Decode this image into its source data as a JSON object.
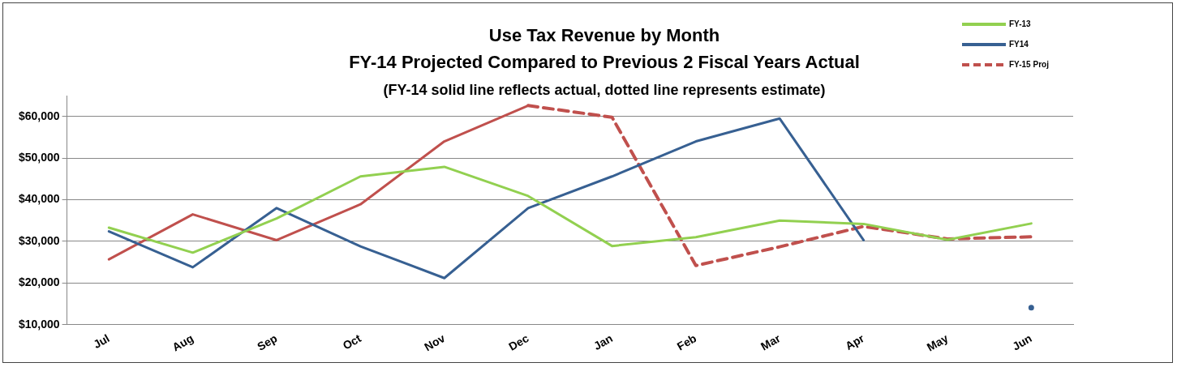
{
  "chart_data": {
    "type": "line",
    "title": "Use Tax Revenue by Month",
    "subtitle": "FY-14 Projected Compared to Previous 2 Fiscal Years Actual",
    "annotations": [
      "(FY-14 solid line reflects actual, dotted line represents estimate)"
    ],
    "categories": [
      "Jul",
      "Aug",
      "Sep",
      "Oct",
      "Nov",
      "Dec",
      "Jan",
      "Feb",
      "Mar",
      "Apr",
      "May",
      "Jun"
    ],
    "series": [
      {
        "name": "FY-13",
        "color": "#92d050",
        "line_style": "solid",
        "values": [
          33300,
          27300,
          35500,
          45600,
          47900,
          40900,
          28900,
          31000,
          35000,
          34200,
          30400,
          34300
        ]
      },
      {
        "name": "FY14",
        "color": "#376092",
        "line_style": "solid",
        "values": [
          32400,
          23800,
          38000,
          28800,
          21200,
          38000,
          45600,
          54000,
          59500,
          30300,
          null,
          14100
        ]
      },
      {
        "color": "#c0504d",
        "line_style": "solid",
        "values": [
          25700,
          36500,
          30300,
          38900,
          54000,
          62600,
          null,
          null,
          null,
          null,
          null,
          null
        ]
      },
      {
        "name": "FY-15 Proj",
        "color": "#c0504d",
        "line_style": "dashed",
        "values": [
          null,
          null,
          null,
          null,
          null,
          62600,
          59800,
          24200,
          28700,
          33600,
          30600,
          31100
        ]
      }
    ],
    "ylim": [
      10000,
      65000
    ],
    "yticks": [
      {
        "value": 10000,
        "label": "$10,000"
      },
      {
        "value": 20000,
        "label": "$20,000"
      },
      {
        "value": 30000,
        "label": "$30,000"
      },
      {
        "value": 40000,
        "label": "$40,000"
      },
      {
        "value": 50000,
        "label": "$50,000"
      },
      {
        "value": 60000,
        "label": "$60,000"
      }
    ],
    "grid": "y",
    "legend": "top right",
    "marker": "none"
  }
}
